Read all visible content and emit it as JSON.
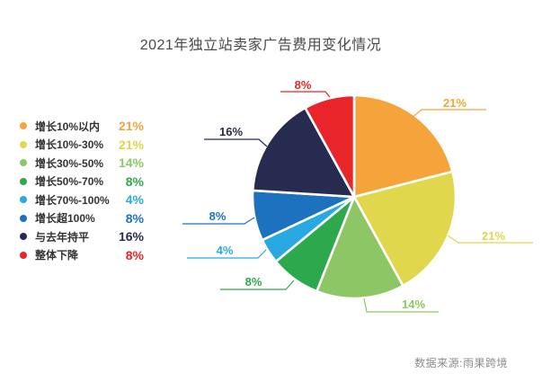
{
  "title": "2021年独立站卖家广告费用变化情况",
  "source": "数据来源:雨果跨境",
  "chart_data": {
    "type": "pie",
    "title": "2021年独立站卖家广告费用变化情况",
    "direction": "clockwise",
    "start_angle_deg": 0,
    "legend_position": "left",
    "slices": [
      {
        "label": "增长10%以内",
        "value": 21,
        "display": "21%",
        "color": "#F5A43B"
      },
      {
        "label": "增长10%-30%",
        "value": 21,
        "display": "21%",
        "color": "#E0D74D"
      },
      {
        "label": "增长30%-50%",
        "value": 14,
        "display": "14%",
        "color": "#8DC765"
      },
      {
        "label": "增长50%-70%",
        "value": 8,
        "display": "8%",
        "color": "#2EA84D"
      },
      {
        "label": "增长70%-100%",
        "value": 4,
        "display": "4%",
        "color": "#29A9E1"
      },
      {
        "label": "增长超100%",
        "value": 8,
        "display": "8%",
        "color": "#1C72BE"
      },
      {
        "label": "与去年持平",
        "value": 16,
        "display": "16%",
        "color": "#262B4F"
      },
      {
        "label": "整体下降",
        "value": 8,
        "display": "8%",
        "color": "#E92529"
      }
    ]
  }
}
